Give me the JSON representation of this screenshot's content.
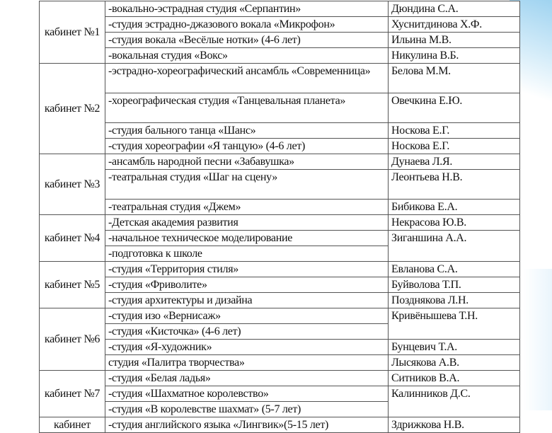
{
  "rooms": [
    {
      "room": "кабинет №1",
      "rows": [
        {
          "activity": "-вокально-эстрадная студия «Серпантин»",
          "teacher": "Дюндина С.А."
        },
        {
          "activity": "-студия эстрадно-джазового вокала «Микрофон»",
          "teacher": "Хуснитдинова Х.Ф."
        },
        {
          "activity": "-студия вокала «Весёлые нотки» (4-6 лет)",
          "teacher": "Ильина М.В."
        },
        {
          "activity": "-вокальная студия «Вокс»",
          "teacher": "Никулина В.Б."
        }
      ]
    },
    {
      "room": "кабинет №2",
      "rows": [
        {
          "activity": "-эстрадно-хореографический ансамбль «Современница»",
          "teacher": "Белова М.М.",
          "lines": 2
        },
        {
          "activity": "-хореографическая студия «Танцевальная планета»",
          "teacher": "Овечкина Е.Ю.",
          "lines": 2
        },
        {
          "activity": "-студия бального танца «Шанс»",
          "teacher": "Носкова Е.Г."
        },
        {
          "activity": "-студия хореографии «Я танцую» (4-6 лет)",
          "teacher": "Носкова Е.Г."
        }
      ]
    },
    {
      "room": "кабинет №3",
      "rows": [
        {
          "activity": "-ансамбль народной песни «Забавушка»",
          "teacher": "Дунаева Л.Я."
        },
        {
          "activity": "-театральная студия «Шаг на сцену»",
          "teacher": "Леонтьева Н.В.",
          "lines": 2
        },
        {
          "activity": "-театральная студия «Джем»",
          "teacher": "Бибикова Е.А."
        }
      ]
    },
    {
      "room": "кабинет №4",
      "rows": [
        {
          "activity": "-Детская академия развития",
          "teacher": "Некрасова Ю.В."
        },
        {
          "activity": "-начальное техническое моделирование",
          "teacher": "Зиганшина А.А.",
          "span": 2
        },
        {
          "activity": "-подготовка к школе"
        }
      ]
    },
    {
      "room": "кабинет №5",
      "rows": [
        {
          "activity": "-студия «Территория стиля»",
          "teacher": "Евланова С.А."
        },
        {
          "activity": "-студия «Фриволите»",
          "teacher": "Буйволова Т.П."
        },
        {
          "activity": "-студия архитектуры и  дизайна",
          "teacher": "Позднякова Л.Н."
        }
      ]
    },
    {
      "room": "кабинет №6",
      "rows": [
        {
          "activity": "-студия изо «Вернисаж»",
          "teacher": "Кривёнышева Т.Н.",
          "span": 2
        },
        {
          "activity": "-студия «Кисточка» (4-6 лет)"
        },
        {
          "activity": "-студия «Я-художник»",
          "teacher": "Бунцевич Т.А."
        },
        {
          "activity": "студия «Палитра творчества»",
          "teacher": "Лысякова А.В."
        }
      ]
    },
    {
      "room": "кабинет №7",
      "rows": [
        {
          "activity": "-студия «Белая ладья»",
          "teacher": "Ситников В.А."
        },
        {
          "activity": "-студия «Шахматное королевство»",
          "teacher": "Калинников Д.С.",
          "span": 2
        },
        {
          "activity": "-студия «В королевстве шахмат» (5-7 лет)"
        }
      ]
    },
    {
      "room": "кабинет",
      "rows": [
        {
          "activity": "-студия английского языка «Лингвик»(5-15 лет)",
          "teacher": "Здрижкова Н.В."
        }
      ]
    }
  ]
}
